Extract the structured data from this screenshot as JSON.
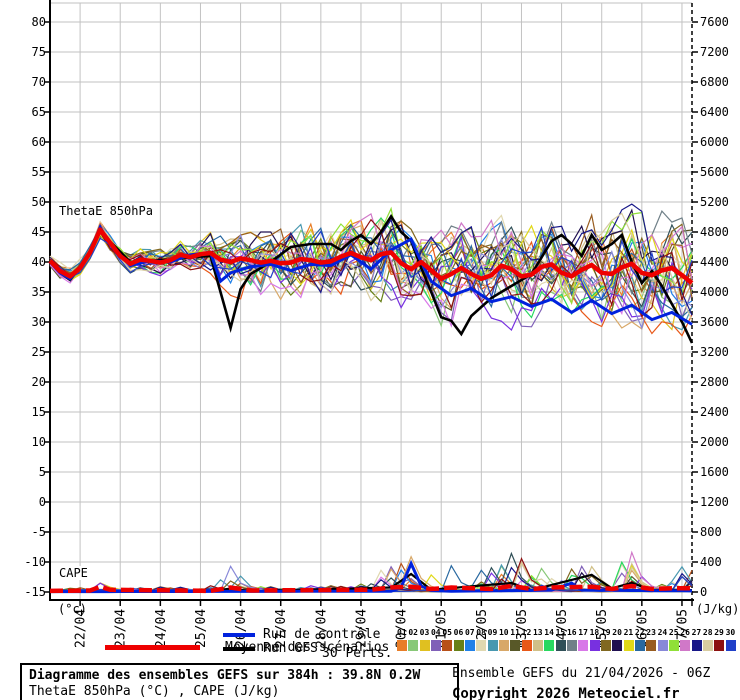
{
  "chart": {
    "thetae_label": "ThetaE 850hPa",
    "cape_label": "CAPE",
    "left_unit": "(°c)",
    "right_unit": "(J/kg)",
    "left_ticks": [
      80,
      75,
      70,
      65,
      60,
      55,
      50,
      45,
      40,
      35,
      30,
      25,
      20,
      15,
      10,
      5,
      0,
      -5,
      -10,
      -15
    ],
    "right_ticks": [
      7600,
      7200,
      6800,
      6400,
      6000,
      5600,
      5200,
      4800,
      4400,
      4000,
      3600,
      3200,
      2800,
      2400,
      2000,
      1600,
      1200,
      800,
      400,
      0
    ],
    "x_labels": [
      "22/04",
      "23/04",
      "24/04",
      "25/04",
      "26/04",
      "27/04",
      "28/04",
      "29/04",
      "30/04",
      "01/05",
      "02/05",
      "03/05",
      "04/05",
      "05/05",
      "06/05",
      "07/05"
    ]
  },
  "legend": {
    "mean_label": "Moyenne des scénarios",
    "control_label": "Run de contrôle",
    "gfs_label": "Run GFS",
    "perts_label": "30 Perts.",
    "pert_numbers": [
      "01",
      "02",
      "03",
      "04",
      "05",
      "06",
      "07",
      "08",
      "09",
      "10",
      "11",
      "12",
      "13",
      "14",
      "15",
      "16",
      "17",
      "18",
      "19",
      "20",
      "21",
      "22",
      "23",
      "24",
      "25",
      "26",
      "27",
      "28",
      "29",
      "30"
    ]
  },
  "footer": {
    "title": "Diagramme des ensembles GEFS sur 384h : 39.8N 0.2W",
    "subtitle": "ThetaE 850hPa (°C) , CAPE (J/kg)",
    "run_info": "Ensemble GEFS du 21/04/2026 - 06Z",
    "copyright": "Copyright 2026 Meteociel.fr"
  },
  "chart_data": {
    "type": "line",
    "title": "Diagramme des ensembles GEFS sur 384h : 39.8N 0.2W",
    "x_unit": "hours since run start 21/04/2026 06Z",
    "x_range_hours": [
      0,
      384
    ],
    "x_tick_hours": [
      18,
      42,
      66,
      90,
      114,
      138,
      162,
      186,
      210,
      234,
      258,
      282,
      306,
      330,
      354,
      378
    ],
    "x_tick_labels": [
      "22/04",
      "23/04",
      "24/04",
      "25/04",
      "26/04",
      "27/04",
      "28/04",
      "29/04",
      "30/04",
      "01/05",
      "02/05",
      "03/05",
      "04/05",
      "05/05",
      "06/05",
      "07/05"
    ],
    "left_axis": {
      "label": "ThetaE 850hPa (°c)",
      "ylim": [
        -15,
        80
      ],
      "tick_step": 5
    },
    "right_axis": {
      "label": "CAPE (J/kg)",
      "ylim": [
        0,
        7600
      ],
      "tick_step": 400
    },
    "grid": true,
    "legend_position": "bottom",
    "colors": {
      "mean": "#ee0000",
      "control": "#0022dd",
      "gfs": "#000000",
      "grid": "#c2c2c2"
    },
    "mean_thetae": {
      "h0": 0,
      "dh": 6,
      "v": [
        40.2,
        38.5,
        37.6,
        39.0,
        41.6,
        45.4,
        43.2,
        41.0,
        39.7,
        40.4,
        40.2,
        39.9,
        40.3,
        41.2,
        40.8,
        41.3,
        41.5,
        40.4,
        40.0,
        40.6,
        40.3,
        39.9,
        40.2,
        39.8,
        39.9,
        40.5,
        40.3,
        39.9,
        40.1,
        40.9,
        41.5,
        40.8,
        40.3,
        41.3,
        41.6,
        39.8,
        38.8,
        40.0,
        38.6,
        37.2,
        38.0,
        39.0,
        38.0,
        37.2,
        37.8,
        39.4,
        38.8,
        37.6,
        37.9,
        39.2,
        39.6,
        38.2,
        37.6,
        38.7,
        39.5,
        38.2,
        38.0,
        39.1,
        39.7,
        38.2,
        37.8,
        38.6,
        39.0,
        37.8,
        36.5
      ]
    },
    "control_thetae": {
      "h": [
        0,
        6,
        12,
        18,
        24,
        30,
        36,
        48,
        60,
        72,
        84,
        96,
        102,
        108,
        120,
        132,
        144,
        156,
        168,
        180,
        192,
        204,
        216,
        222,
        228,
        240,
        252,
        264,
        276,
        288,
        300,
        312,
        324,
        336,
        348,
        360,
        372,
        384
      ],
      "v": [
        40.0,
        38.2,
        37.2,
        39.0,
        41.8,
        45.8,
        43.0,
        39.4,
        40.2,
        40.0,
        41.2,
        41.6,
        36.8,
        38.2,
        39.2,
        39.6,
        38.6,
        39.6,
        39.4,
        41.2,
        38.8,
        42.0,
        43.8,
        40.0,
        36.8,
        34.4,
        35.6,
        33.4,
        34.2,
        32.6,
        33.8,
        31.6,
        33.6,
        31.4,
        32.8,
        30.4,
        31.6,
        29.6
      ]
    },
    "gfs_thetae": {
      "h": [
        0,
        6,
        12,
        18,
        24,
        30,
        36,
        48,
        60,
        72,
        84,
        96,
        102,
        108,
        114,
        120,
        132,
        144,
        156,
        168,
        174,
        180,
        186,
        192,
        198,
        204,
        210,
        216,
        222,
        228,
        234,
        240,
        246,
        252,
        264,
        276,
        288,
        300,
        306,
        312,
        318,
        324,
        330,
        336,
        342,
        348,
        354,
        360,
        366,
        372,
        378,
        384
      ],
      "v": [
        40.1,
        38.2,
        37.0,
        39.2,
        41.7,
        45.6,
        43.4,
        40.0,
        40.2,
        40.4,
        40.8,
        41.0,
        35.0,
        29.0,
        35.5,
        38.0,
        40.0,
        42.5,
        43.0,
        43.0,
        42.0,
        43.5,
        44.5,
        43.0,
        45.0,
        47.6,
        45.0,
        43.5,
        39.0,
        35.0,
        30.8,
        30.2,
        28.0,
        31.0,
        34.0,
        36.0,
        38.0,
        43.5,
        44.5,
        43.0,
        41.0,
        44.5,
        42.0,
        43.0,
        44.5,
        40.0,
        36.5,
        38.5,
        36.0,
        33.0,
        30.0,
        26.5
      ]
    },
    "envelope_thetae": {
      "h": [
        0,
        12,
        24,
        30,
        36,
        48,
        60,
        72,
        84,
        96,
        108,
        120,
        132,
        144,
        156,
        168,
        180,
        192,
        204,
        216,
        228,
        240,
        252,
        264,
        276,
        288,
        300,
        312,
        324,
        336,
        348,
        360,
        372,
        384
      ],
      "min": [
        38.5,
        35.5,
        40,
        43,
        41,
        37.5,
        37,
        37.5,
        38,
        35.5,
        31,
        29.5,
        28.5,
        27.5,
        28,
        28.5,
        29.5,
        29,
        30,
        28,
        26,
        22,
        26,
        27,
        27.5,
        27,
        27.5,
        26.5,
        26,
        25.5,
        25,
        25.5,
        25,
        24.5
      ],
      "max": [
        41.8,
        39.5,
        43,
        47.2,
        45,
        42.5,
        43,
        43.5,
        44,
        45.5,
        44,
        45,
        45,
        46,
        46.5,
        46,
        47,
        49,
        51,
        48,
        46,
        46,
        47,
        47.5,
        48,
        48.5,
        49,
        48,
        49,
        50,
        50,
        50,
        52,
        50
      ]
    },
    "mean_cape": {
      "h": [
        0,
        24,
        30,
        36,
        96,
        108,
        120,
        192,
        204,
        216,
        228,
        240,
        264,
        276,
        288,
        300,
        324,
        336,
        348,
        360,
        372,
        384
      ],
      "v": [
        15,
        20,
        70,
        30,
        15,
        60,
        20,
        30,
        60,
        70,
        40,
        60,
        40,
        80,
        40,
        60,
        70,
        40,
        80,
        40,
        50,
        50
      ]
    },
    "control_cape": {
      "h": [
        0,
        204,
        210,
        216,
        222,
        228,
        240,
        300,
        312,
        318,
        384
      ],
      "v": [
        5,
        10,
        60,
        380,
        80,
        20,
        10,
        25,
        120,
        25,
        15
      ]
    },
    "gfs_cape": {
      "h": [
        0,
        96,
        108,
        120,
        204,
        216,
        228,
        276,
        288,
        324,
        336,
        348,
        360,
        384
      ],
      "v": [
        5,
        10,
        45,
        10,
        60,
        240,
        30,
        120,
        25,
        230,
        50,
        120,
        30,
        25
      ]
    },
    "member_cape_max": {
      "h": [
        0,
        24,
        30,
        42,
        96,
        108,
        120,
        144,
        168,
        180,
        192,
        204,
        216,
        228,
        240,
        252,
        264,
        276,
        288,
        300,
        312,
        324,
        336,
        348,
        360,
        372,
        384
      ],
      "v": [
        60,
        80,
        280,
        60,
        100,
        440,
        110,
        70,
        120,
        160,
        220,
        520,
        560,
        340,
        520,
        330,
        420,
        800,
        300,
        480,
        450,
        620,
        400,
        870,
        300,
        420,
        400
      ]
    },
    "member_colors": [
      "#e87d28",
      "#88c878",
      "#e0c020",
      "#8060b8",
      "#b85018",
      "#688018",
      "#2080e8",
      "#e0d8b0",
      "#4898b0",
      "#d8a868",
      "#585828",
      "#e85818",
      "#d0c088",
      "#28d860",
      "#305058",
      "#708088",
      "#d878e8",
      "#7830e0",
      "#806820",
      "#201050",
      "#e0d818",
      "#2868a0",
      "#985c20",
      "#8888d8",
      "#90e038",
      "#d078c8",
      "#181888",
      "#d8cca0",
      "#8c1010",
      "#2040c8"
    ]
  }
}
